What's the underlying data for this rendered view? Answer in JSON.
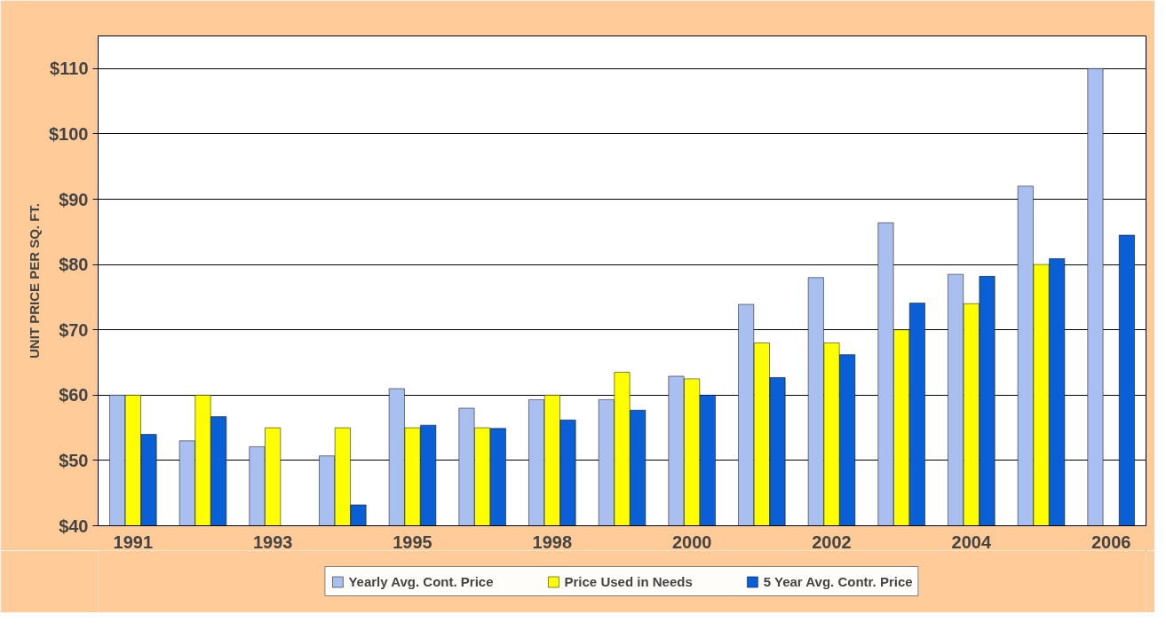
{
  "chart_data": {
    "type": "bar",
    "ylabel": "UNIT PRICE PER SQ. FT.",
    "categories": [
      "1991",
      null,
      "1993",
      null,
      "1995",
      null,
      "1998",
      null,
      "2000",
      null,
      "2002",
      null,
      "2004",
      null,
      "2006"
    ],
    "series": [
      {
        "name": "Yearly Avg. Cont. Price",
        "color": "#a9bff0",
        "values": [
          60,
          53,
          52.1,
          50.7,
          61,
          58,
          59.3,
          59.3,
          62.9,
          73.9,
          78,
          86.4,
          78.5,
          92,
          110
        ]
      },
      {
        "name": "Price Used in Needs",
        "color": "#ffff00",
        "values": [
          60,
          60,
          55,
          55,
          55,
          55,
          60,
          63.5,
          62.5,
          68,
          68,
          70,
          74,
          80,
          null
        ]
      },
      {
        "name": "5 Year Avg. Contr. Price",
        "color": "#0a5fd6",
        "values": [
          54,
          56.7,
          null,
          43.2,
          55.4,
          54.9,
          56.2,
          57.7,
          60,
          62.7,
          66.2,
          74.1,
          78.2,
          80.9,
          84.5
        ]
      }
    ],
    "ylim": [
      40,
      115
    ],
    "yticks": [
      {
        "value": 40,
        "label": "$40"
      },
      {
        "value": 50,
        "label": "$50"
      },
      {
        "value": 60,
        "label": "$60"
      },
      {
        "value": 70,
        "label": "$70"
      },
      {
        "value": 80,
        "label": "$80"
      },
      {
        "value": 90,
        "label": "$90"
      },
      {
        "value": 100,
        "label": "$100"
      },
      {
        "value": 110,
        "label": "$110"
      }
    ],
    "grid": "y",
    "legend": "bottom"
  }
}
